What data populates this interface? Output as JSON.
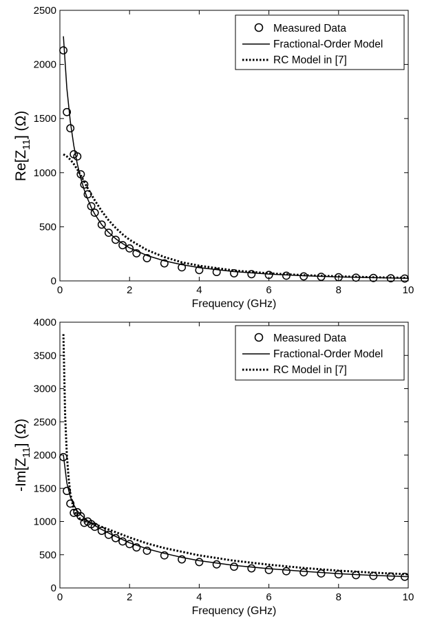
{
  "chart_data": [
    {
      "type": "line",
      "ylabel": {
        "pre": "Re[Z",
        "sub": "11",
        "post": "] (Ω)"
      },
      "xlabel": "Frequency (GHz)",
      "xlim": [
        0,
        10
      ],
      "ylim": [
        0,
        2500
      ],
      "xticks": [
        "0",
        "2",
        "4",
        "6",
        "8",
        "10"
      ],
      "yticks": [
        "0",
        "500",
        "1000",
        "1500",
        "2000",
        "2500"
      ],
      "legend_position": "top-right",
      "legend": [
        "Measured Data",
        "Fractional-Order Model",
        "RC Model in [7]"
      ],
      "series": [
        {
          "name": "Measured Data",
          "style": "circles",
          "x": [
            0.1,
            0.2,
            0.3,
            0.4,
            0.5,
            0.6,
            0.7,
            0.8,
            0.9,
            1.0,
            1.2,
            1.4,
            1.6,
            1.8,
            2.0,
            2.2,
            2.5,
            3.0,
            3.5,
            4.0,
            4.5,
            5.0,
            5.5,
            6.0,
            6.5,
            7.0,
            7.5,
            8.0,
            8.5,
            9.0,
            9.5,
            9.9
          ],
          "y": [
            2130,
            1560,
            1410,
            1170,
            1150,
            985,
            890,
            800,
            690,
            630,
            520,
            445,
            380,
            330,
            300,
            255,
            210,
            162,
            125,
            100,
            82,
            70,
            62,
            55,
            48,
            42,
            38,
            34,
            30,
            27,
            24,
            22
          ]
        },
        {
          "name": "Fractional-Order Model",
          "style": "solid",
          "x": [
            0.1,
            0.2,
            0.3,
            0.4,
            0.5,
            0.6,
            0.7,
            0.8,
            0.9,
            1.0,
            1.2,
            1.4,
            1.6,
            1.8,
            2.0,
            2.5,
            3.0,
            3.5,
            4.0,
            5.0,
            6.0,
            7.0,
            8.0,
            9.0,
            10.0
          ],
          "y": [
            2260,
            1780,
            1470,
            1250,
            1080,
            945,
            840,
            755,
            680,
            618,
            520,
            448,
            390,
            345,
            305,
            235,
            185,
            150,
            122,
            86,
            63,
            48,
            37,
            30,
            24
          ]
        },
        {
          "name": "RC Model in [7]",
          "style": "dotted",
          "x": [
            0.1,
            0.2,
            0.3,
            0.4,
            0.5,
            0.6,
            0.7,
            0.8,
            0.9,
            1.0,
            1.2,
            1.4,
            1.6,
            1.8,
            2.0,
            2.5,
            3.0,
            3.5,
            4.0,
            5.0,
            6.0,
            7.0,
            8.0,
            9.0,
            10.0
          ],
          "y": [
            1170,
            1150,
            1120,
            1080,
            1030,
            975,
            915,
            855,
            800,
            745,
            645,
            560,
            490,
            430,
            380,
            285,
            220,
            172,
            140,
            96,
            70,
            53,
            42,
            34,
            28
          ]
        }
      ]
    },
    {
      "type": "line",
      "ylabel": {
        "pre": "-Im[Z",
        "sub": "11",
        "post": "] (Ω)"
      },
      "xlabel": "Frequency (GHz)",
      "xlim": [
        0,
        10
      ],
      "ylim": [
        0,
        4000
      ],
      "xticks": [
        "0",
        "2",
        "4",
        "6",
        "8",
        "10"
      ],
      "yticks": [
        "0",
        "500",
        "1000",
        "1500",
        "2000",
        "2500",
        "3000",
        "3500",
        "4000"
      ],
      "legend_position": "top-right",
      "legend": [
        "Measured Data",
        "Fractional-Order Model",
        "RC Model in [7]"
      ],
      "series": [
        {
          "name": "Measured Data",
          "style": "circles",
          "x": [
            0.1,
            0.2,
            0.3,
            0.4,
            0.5,
            0.6,
            0.7,
            0.8,
            0.9,
            1.0,
            1.2,
            1.4,
            1.6,
            1.8,
            2.0,
            2.2,
            2.5,
            3.0,
            3.5,
            4.0,
            4.5,
            5.0,
            5.5,
            6.0,
            6.5,
            7.0,
            7.5,
            8.0,
            8.5,
            9.0,
            9.5,
            9.9
          ],
          "y": [
            1970,
            1460,
            1270,
            1130,
            1140,
            1080,
            980,
            1000,
            960,
            920,
            860,
            800,
            750,
            700,
            660,
            610,
            560,
            490,
            430,
            390,
            355,
            320,
            295,
            270,
            252,
            235,
            218,
            205,
            193,
            182,
            172,
            168
          ]
        },
        {
          "name": "Fractional-Order Model",
          "style": "solid",
          "x": [
            0.1,
            0.2,
            0.3,
            0.4,
            0.5,
            0.6,
            0.8,
            1.0,
            1.2,
            1.5,
            2.0,
            2.5,
            3.0,
            3.5,
            4.0,
            5.0,
            6.0,
            7.0,
            8.0,
            9.0,
            10.0
          ],
          "y": [
            2000,
            1580,
            1370,
            1250,
            1160,
            1100,
            1010,
            940,
            880,
            800,
            680,
            590,
            520,
            460,
            410,
            340,
            290,
            250,
            215,
            190,
            170
          ]
        },
        {
          "name": "RC Model in [7]",
          "style": "dotted",
          "x": [
            0.1,
            0.15,
            0.2,
            0.25,
            0.3,
            0.4,
            0.5,
            0.6,
            0.8,
            1.0,
            1.5,
            2.0,
            2.5,
            3.0,
            4.0,
            5.0,
            6.0,
            7.0,
            8.0,
            9.0,
            10.0
          ],
          "y": [
            3820,
            2600,
            2000,
            1650,
            1420,
            1180,
            1080,
            1030,
            990,
            960,
            860,
            760,
            670,
            600,
            490,
            410,
            350,
            300,
            260,
            230,
            205
          ]
        }
      ]
    }
  ]
}
